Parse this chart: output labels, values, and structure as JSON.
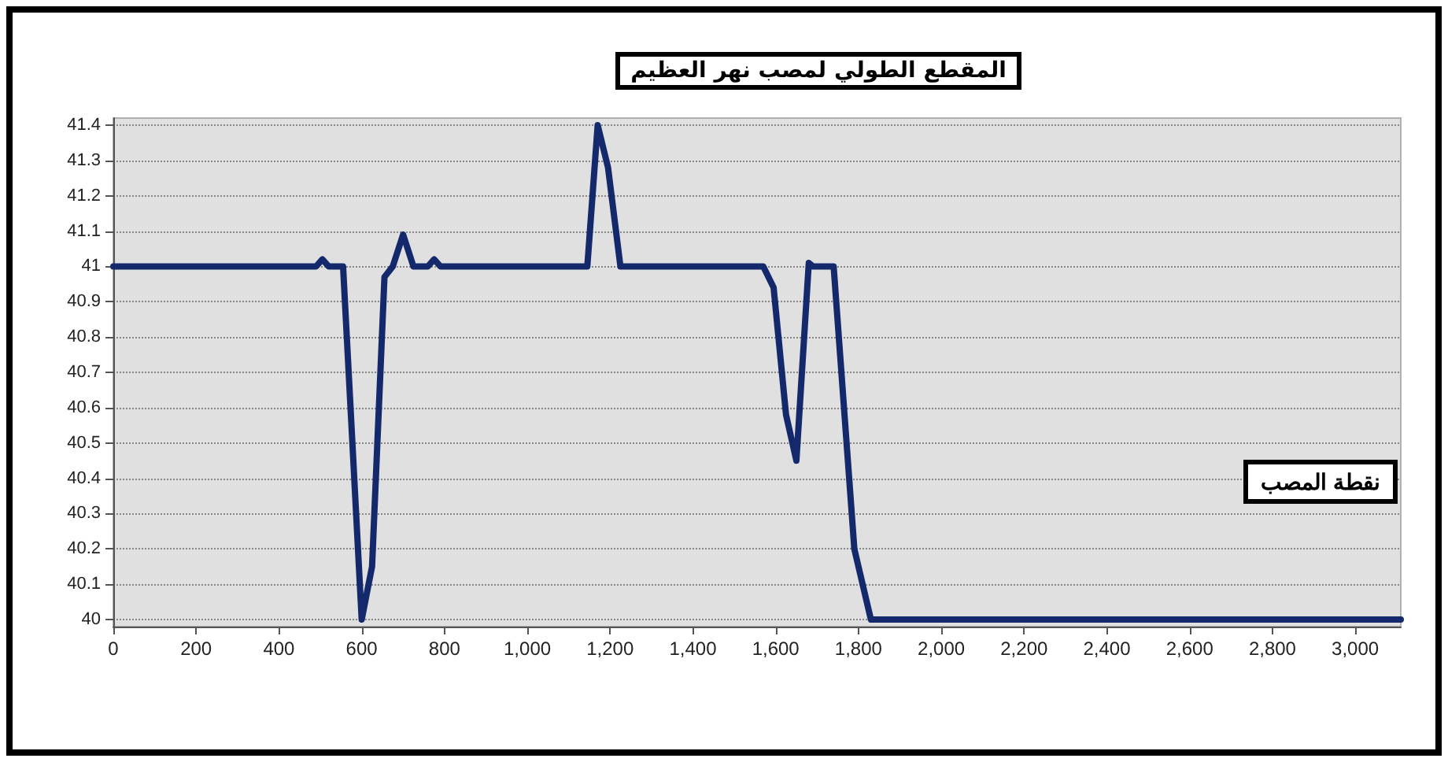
{
  "chart_data": {
    "type": "line",
    "title": "المقطع الطولي لمصب نهر العظيم",
    "annotations": [
      "نقطة المصب"
    ],
    "x": [
      0,
      490,
      505,
      520,
      555,
      600,
      625,
      655,
      675,
      700,
      725,
      760,
      775,
      790,
      1145,
      1170,
      1195,
      1225,
      1570,
      1595,
      1625,
      1650,
      1680,
      1690,
      1740,
      1790,
      1830,
      3110
    ],
    "series": [
      {
        "color": "#13296b",
        "values": [
          41,
          41,
          41.02,
          41,
          41,
          40,
          40.15,
          40.97,
          41,
          41.09,
          41,
          41,
          41.02,
          41,
          41,
          41.4,
          41.28,
          41,
          41,
          40.94,
          40.58,
          40.45,
          41.01,
          41,
          41,
          40.2,
          40,
          40
        ]
      }
    ],
    "xlim": [
      0,
      3110
    ],
    "xticks": [
      0,
      {
        "value": 200,
        "label": "200"
      },
      {
        "value": 400,
        "label": "400"
      },
      {
        "value": 600,
        "label": "600"
      },
      {
        "value": 800,
        "label": "800"
      },
      {
        "value": 1000,
        "label": "1,000"
      },
      {
        "value": 1200,
        "label": "1,200"
      },
      {
        "value": 1400,
        "label": "1,400"
      },
      {
        "value": 1600,
        "label": "1,600"
      },
      {
        "value": 1800,
        "label": "1,800"
      },
      {
        "value": 2000,
        "label": "2,000"
      },
      {
        "value": 2200,
        "label": "2,200"
      },
      {
        "value": 2400,
        "label": "2,400"
      },
      {
        "value": 2600,
        "label": "2,600"
      },
      {
        "value": 2800,
        "label": "2,800"
      },
      {
        "value": 3000,
        "label": "3,000"
      }
    ],
    "ylim": [
      39.98,
      41.42
    ],
    "yticks": [
      40,
      40.1,
      40.2,
      40.3,
      40.4,
      40.5,
      40.6,
      40.7,
      40.8,
      40.9,
      41,
      41.1,
      41.2,
      41.3,
      41.4
    ],
    "grid": "y",
    "marker": "none",
    "line_style": "solid"
  }
}
